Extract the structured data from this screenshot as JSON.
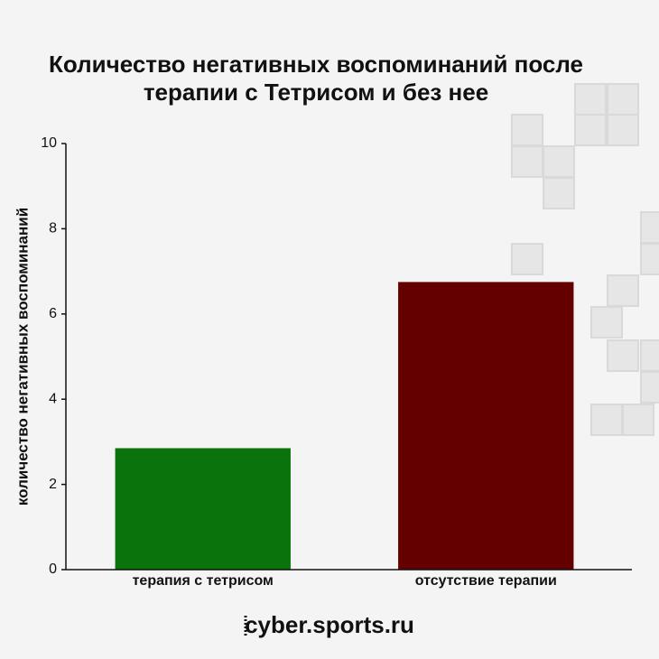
{
  "chart_data": {
    "type": "bar",
    "title": "Количество негативных воспоминаний после терапии с Тетрисом и без нее",
    "y_label": "количество негативных воспоминаний",
    "categories": [
      "терапия с тетрисом",
      "отсутствие терапии"
    ],
    "values": [
      2.85,
      6.75
    ],
    "colors": [
      "#0b730b",
      "#650000"
    ],
    "ylim": [
      0,
      10
    ],
    "yticks": [
      0,
      2,
      4,
      6,
      8,
      10
    ],
    "footer": "cyber.sports.ru"
  }
}
